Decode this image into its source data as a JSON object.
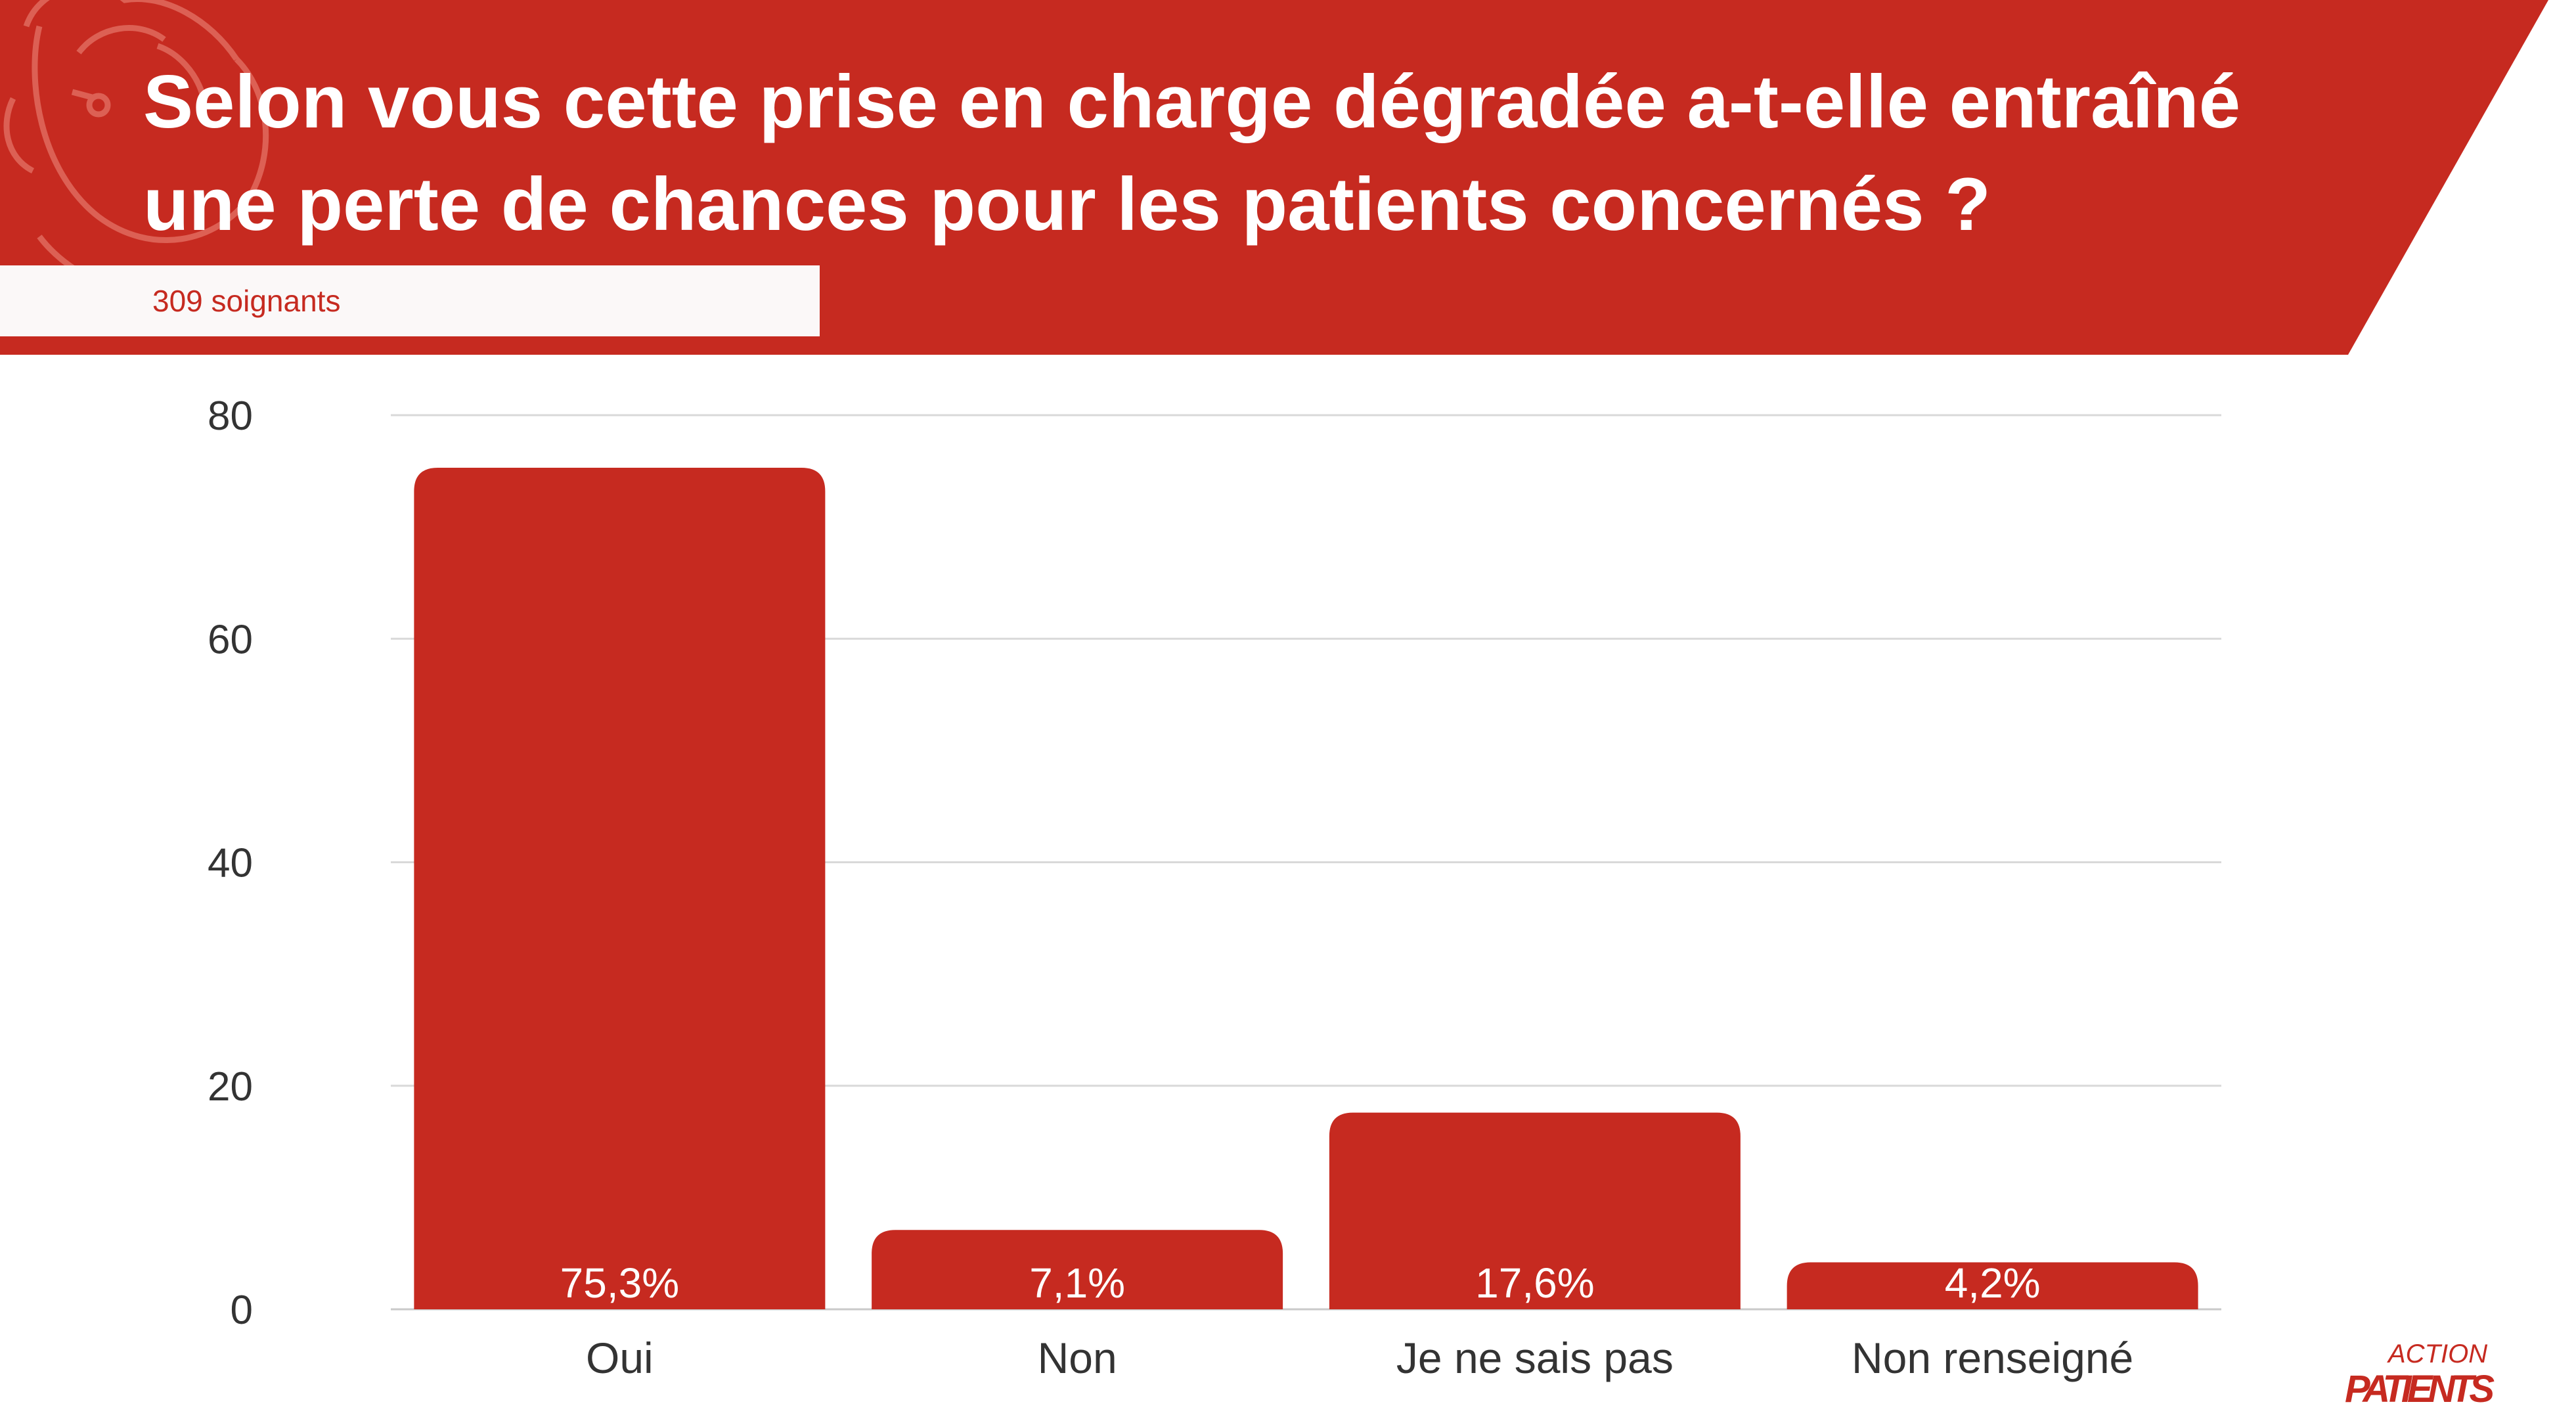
{
  "colors": {
    "brand_red": "#c62a20",
    "gridline": "#d9d9d9",
    "axis_text": "#333333",
    "label_text": "#ffffff"
  },
  "header": {
    "title": "Selon vous cette prise en charge dégradée a-t-elle entraîné une perte de chances pour les patients concernés ?",
    "subtitle": "309 soignants"
  },
  "logo": {
    "text_top": "ACTION",
    "text_bottom": "PATIENTS"
  },
  "chart_data": {
    "type": "bar",
    "categories": [
      "Oui",
      "Non",
      "Je ne sais pas",
      "Non renseigné"
    ],
    "values": [
      75.3,
      7.1,
      17.6,
      4.2
    ],
    "data_labels": [
      "75,3%",
      "7,1%",
      "17,6%",
      "4,2%"
    ],
    "ylim": [
      0,
      80
    ],
    "yticks": [
      0,
      20,
      40,
      60,
      80
    ],
    "grid": true,
    "legend": "none"
  }
}
